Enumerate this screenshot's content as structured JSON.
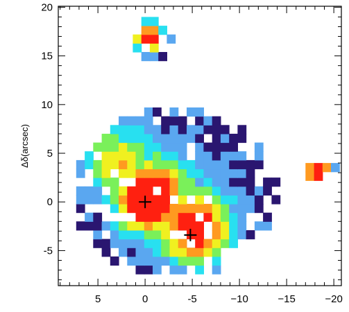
{
  "chart_data": {
    "type": "heatmap",
    "title": "",
    "xlabel": "",
    "ylabel": "Δδ(arcsec)",
    "xlim": [
      9.2,
      -20.8
    ],
    "ylim": [
      -8.6,
      20.1
    ],
    "x_ticks": [
      {
        "value": 5,
        "label": "5"
      },
      {
        "value": 0,
        "label": "0"
      },
      {
        "value": -5,
        "label": "-5"
      },
      {
        "value": -10,
        "label": "−10"
      },
      {
        "value": -15,
        "label": "−15"
      },
      {
        "value": -20,
        "label": "−20"
      }
    ],
    "y_ticks": [
      {
        "value": -5,
        "label": "-5"
      },
      {
        "value": 0,
        "label": "0"
      },
      {
        "value": 5,
        "label": "5"
      },
      {
        "value": 10,
        "label": "10"
      },
      {
        "value": 15,
        "label": "15"
      },
      {
        "value": 20,
        "label": "20"
      }
    ],
    "grid": false,
    "colormap": [
      "#2a1670",
      "#5aa7f0",
      "#28e0f0",
      "#7af05a",
      "#f0f020",
      "#ff9a20",
      "#ff2010"
    ],
    "background": "#ffffff",
    "markers": [
      {
        "x": 0,
        "y": 0,
        "symbol": "+"
      },
      {
        "x": -4.8,
        "y": -3.4,
        "symbol": "+"
      }
    ],
    "sources": [
      {
        "name": "main",
        "extent_x": [
          8.2,
          -13.5
        ],
        "extent_y": [
          -8.3,
          9.4
        ],
        "peaks": [
          [
            0,
            0,
            1.0
          ],
          [
            -4.8,
            -3.4,
            0.9
          ],
          [
            3.5,
            3.8,
            0.6
          ]
        ]
      },
      {
        "name": "north",
        "extent_x": [
          2.2,
          -2.4
        ],
        "extent_y": [
          13.6,
          19.0
        ],
        "peaks": [
          [
            0.2,
            16.6,
            0.9
          ]
        ]
      },
      {
        "name": "east",
        "extent_x": [
          -16.1,
          -19.8
        ],
        "extent_y": [
          1.3,
          4.2
        ],
        "peaks": [
          [
            -17.8,
            2.6,
            1.0
          ]
        ]
      }
    ]
  }
}
